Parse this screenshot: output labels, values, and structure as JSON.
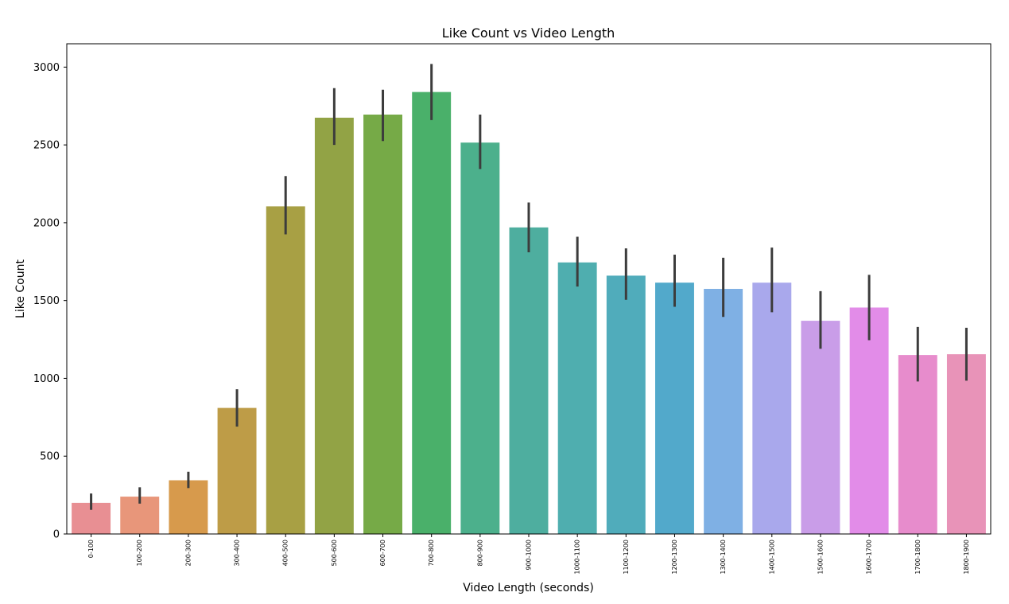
{
  "chart_data": {
    "type": "bar",
    "title": "Like Count vs Video Length",
    "xlabel": "Video Length (seconds)",
    "ylabel": "Like Count",
    "ylim": [
      0,
      3150
    ],
    "yticks": [
      0,
      500,
      1000,
      1500,
      2000,
      2500,
      3000
    ],
    "grid": false,
    "error_bars": true,
    "categories": [
      "0-100",
      "100-200",
      "200-300",
      "300-400",
      "400-500",
      "500-600",
      "600-700",
      "700-800",
      "800-900",
      "900-1000",
      "1000-1100",
      "1100-1200",
      "1200-1300",
      "1300-1400",
      "1400-1500",
      "1500-1600",
      "1600-1700",
      "1700-1800",
      "1800-1900"
    ],
    "values": [
      200,
      240,
      345,
      810,
      2105,
      2675,
      2695,
      2840,
      2515,
      1970,
      1745,
      1660,
      1615,
      1575,
      1615,
      1370,
      1455,
      1150,
      1155
    ],
    "error_low": [
      155,
      195,
      295,
      690,
      1925,
      2500,
      2525,
      2660,
      2345,
      1810,
      1590,
      1505,
      1460,
      1395,
      1425,
      1190,
      1245,
      980,
      985
    ],
    "error_high": [
      260,
      300,
      400,
      930,
      2300,
      2865,
      2855,
      3020,
      2695,
      2130,
      1910,
      1835,
      1795,
      1775,
      1840,
      1560,
      1665,
      1330,
      1325
    ],
    "colors": [
      "#e88f93",
      "#e8967a",
      "#d79a4c",
      "#be9c47",
      "#a8a044",
      "#92a345",
      "#76aa47",
      "#4ab06a",
      "#4cb08c",
      "#4eae9f",
      "#4faeaf",
      "#50acbb",
      "#52a9cb",
      "#7fb0e4",
      "#a9a8ec",
      "#c99de8",
      "#e28ce8",
      "#e78ccc",
      "#e893b8"
    ],
    "error_color": "#3c3c3c"
  }
}
